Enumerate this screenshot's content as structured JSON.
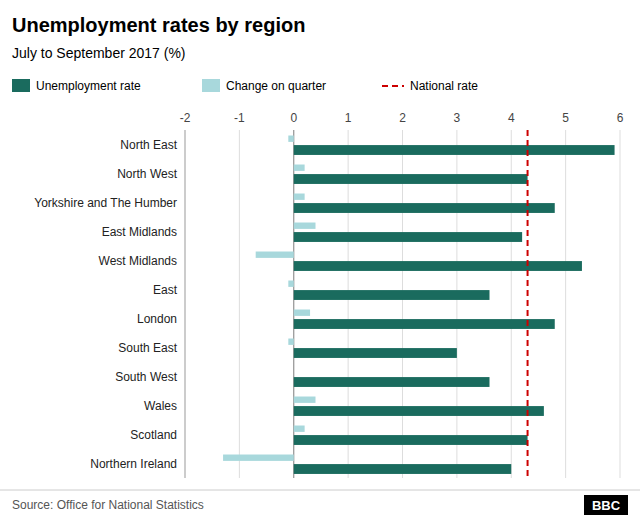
{
  "chart_data": {
    "type": "bar",
    "orientation": "horizontal",
    "title": "Unemployment rates by region",
    "subtitle": "July to September 2017 (%)",
    "source": "Source: Office for National Statistics",
    "badge": "BBC",
    "categories": [
      "North East",
      "North West",
      "Yorkshire and The Humber",
      "East Midlands",
      "West Midlands",
      "East",
      "London",
      "South East",
      "South West",
      "Wales",
      "Scotland",
      "Northern Ireland"
    ],
    "series": [
      {
        "name": "Unemployment rate",
        "color": "#1a6b5e",
        "values": [
          5.9,
          4.3,
          4.8,
          4.2,
          5.3,
          3.6,
          4.8,
          3.0,
          3.6,
          4.6,
          4.3,
          4.0
        ]
      },
      {
        "name": "Change on quarter",
        "color": "#a8d8dc",
        "values": [
          -0.1,
          0.2,
          0.2,
          0.4,
          -0.7,
          -0.1,
          0.3,
          -0.1,
          0.0,
          0.4,
          0.2,
          -1.3
        ]
      }
    ],
    "reference_line": {
      "name": "National rate",
      "value": 4.3,
      "color": "#cc0000",
      "line_style": "dashed"
    },
    "xlim": [
      -2,
      6
    ],
    "xticks": [
      -2,
      -1,
      0,
      1,
      2,
      3,
      4,
      5,
      6
    ],
    "grid": true,
    "legend": "top"
  }
}
